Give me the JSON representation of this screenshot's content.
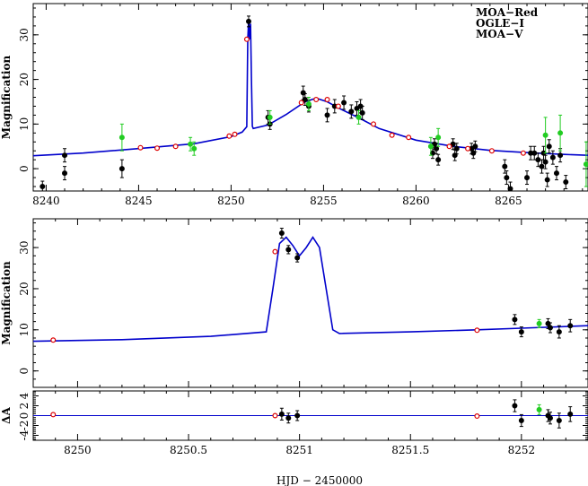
{
  "chart_data": [
    {
      "type": "scatter",
      "ylabel": "Magnification",
      "xlim": [
        8239.3,
        8269.3
      ],
      "ylim": [
        -5,
        37
      ],
      "xticks": [
        8240,
        8245,
        8250,
        8255,
        8260,
        8265
      ],
      "yticks": [
        0,
        10,
        20,
        30
      ],
      "legend": {
        "placement": "top-right",
        "entries": [
          {
            "name": "MOA−Red",
            "color": "#000000"
          },
          {
            "name": "OGLE−I",
            "color": "#dd0000"
          },
          {
            "name": "MOA−V",
            "color": "#22cc22"
          }
        ]
      },
      "model": {
        "name": "",
        "color": "#0000cc",
        "x": [
          8239.3,
          8242,
          8245,
          8248,
          8250,
          8250.6,
          8250.85,
          8250.9,
          8250.95,
          8251.0,
          8251.05,
          8251.1,
          8251.15,
          8251.2,
          8252,
          8253,
          8254,
          8254.6,
          8255.2,
          8256,
          8257,
          8258,
          8260,
          8262,
          8264,
          8266,
          8268,
          8269.3
        ],
        "y": [
          2.9,
          3.5,
          4.5,
          5.6,
          7.2,
          8.2,
          9.4,
          29,
          33.5,
          29,
          32.5,
          20,
          9.5,
          9.0,
          9.8,
          12.2,
          15.0,
          15.8,
          15.0,
          13.2,
          11.2,
          9.0,
          6.4,
          5.0,
          4.1,
          3.6,
          3.2,
          3.0
        ]
      },
      "series": [
        {
          "name": "MOA−Red",
          "color": "#000000",
          "points": [
            [
              8239.8,
              -4,
              1.2
            ],
            [
              8241.0,
              3,
              1.5
            ],
            [
              8241.0,
              -1,
              1.5
            ],
            [
              8244.1,
              0,
              2.0
            ],
            [
              8250.95,
              33,
              1.2
            ],
            [
              8252.0,
              11.5,
              1.5
            ],
            [
              8252.1,
              10,
              1.2
            ],
            [
              8253.9,
              17,
              1.5
            ],
            [
              8254.0,
              15.5,
              1.3
            ],
            [
              8254.2,
              14,
              1.3
            ],
            [
              8255.2,
              12,
              1.5
            ],
            [
              8255.6,
              14,
              1.5
            ],
            [
              8256.1,
              14.8,
              1.5
            ],
            [
              8256.5,
              12.8,
              1.5
            ],
            [
              8256.8,
              13.5,
              1.5
            ],
            [
              8257.0,
              14,
              1.5
            ],
            [
              8257.1,
              12.5,
              1.5
            ],
            [
              8260.9,
              3.5,
              1.2
            ],
            [
              8261.0,
              5.5,
              1.2
            ],
            [
              8261.1,
              4.5,
              1.2
            ],
            [
              8261.2,
              2,
              1.2
            ],
            [
              8262.0,
              5.5,
              1.2
            ],
            [
              8262.1,
              3,
              1.2
            ],
            [
              8262.2,
              4.5,
              1.2
            ],
            [
              8263.0,
              4.5,
              1.2
            ],
            [
              8263.1,
              3.5,
              1.2
            ],
            [
              8263.2,
              5,
              1.2
            ],
            [
              8264.8,
              0.5,
              1.5
            ],
            [
              8264.9,
              -2,
              1.5
            ],
            [
              8265.1,
              -4.5,
              1.5
            ],
            [
              8266.0,
              -2,
              1.5
            ],
            [
              8266.2,
              3.5,
              1.5
            ],
            [
              8266.4,
              3.5,
              1.5
            ],
            [
              8266.6,
              2,
              1.5
            ],
            [
              8266.8,
              0.5,
              1.5
            ],
            [
              8266.9,
              3.5,
              1.5
            ],
            [
              8267.0,
              1.5,
              1.5
            ],
            [
              8267.1,
              -2.5,
              1.5
            ],
            [
              8267.2,
              5,
              1.5
            ],
            [
              8267.4,
              2.5,
              1.5
            ],
            [
              8267.6,
              -1,
              1.5
            ],
            [
              8267.8,
              3,
              1.5
            ],
            [
              8268.1,
              -3,
              1.5
            ]
          ]
        },
        {
          "name": "OGLE−I",
          "color": "#dd0000",
          "points": [
            [
              8245.1,
              4.7,
              0
            ],
            [
              8246.0,
              4.6,
              0
            ],
            [
              8247.0,
              5.0,
              0
            ],
            [
              8249.9,
              7.3,
              0
            ],
            [
              8250.2,
              7.7,
              0
            ],
            [
              8250.85,
              29,
              0
            ],
            [
              8253.8,
              14.8,
              0
            ],
            [
              8254.6,
              15.5,
              0
            ],
            [
              8255.2,
              15.5,
              0
            ],
            [
              8255.8,
              14,
              0
            ],
            [
              8257.7,
              10,
              0
            ],
            [
              8258.7,
              7.5,
              0
            ],
            [
              8259.6,
              7.0,
              0
            ],
            [
              8261.8,
              5.0,
              0
            ],
            [
              8262.8,
              4.5,
              0
            ],
            [
              8264.1,
              4.0,
              0
            ],
            [
              8265.8,
              3.5,
              0
            ]
          ]
        },
        {
          "name": "MOA−V",
          "color": "#22cc22",
          "points": [
            [
              8244.1,
              7,
              3
            ],
            [
              8247.8,
              5.5,
              1.5
            ],
            [
              8248.0,
              4.5,
              1.5
            ],
            [
              8252.1,
              11.5,
              1.5
            ],
            [
              8254.2,
              14.5,
              1.5
            ],
            [
              8256.9,
              11.5,
              1.5
            ],
            [
              8260.8,
              5,
              2
            ],
            [
              8261.2,
              7,
              2
            ],
            [
              8267.0,
              7.5,
              4
            ],
            [
              8267.8,
              8,
              4
            ],
            [
              8269.2,
              1,
              5
            ]
          ]
        }
      ]
    },
    {
      "type": "scatter",
      "ylabel": "Magnification",
      "xlim": [
        8249.8,
        8252.3
      ],
      "ylim": [
        -4,
        37
      ],
      "yticks": [
        0,
        10,
        20,
        30
      ],
      "model": {
        "name": "",
        "color": "#0000cc",
        "x": [
          8249.8,
          8250.2,
          8250.6,
          8250.85,
          8250.88,
          8250.91,
          8250.94,
          8250.97,
          8251.0,
          8251.03,
          8251.06,
          8251.09,
          8251.12,
          8251.15,
          8251.18,
          8251.5,
          8251.8,
          8252.0,
          8252.3
        ],
        "y": [
          7.2,
          7.6,
          8.4,
          9.5,
          20,
          31,
          32.5,
          30.5,
          28,
          30,
          32.5,
          30,
          20,
          10,
          9.1,
          9.5,
          10.0,
          10.4,
          11.0
        ]
      },
      "series": [
        {
          "name": "MOA−Red",
          "color": "#000000",
          "points": [
            [
              8250.92,
              33.5,
              1.2
            ],
            [
              8250.95,
              29.5,
              1.0
            ],
            [
              8250.99,
              27.5,
              1.0
            ],
            [
              8251.97,
              12.5,
              1.2
            ],
            [
              8252.0,
              9.5,
              1.2
            ],
            [
              8252.12,
              11.5,
              1.2
            ],
            [
              8252.13,
              10.5,
              1.2
            ],
            [
              8252.17,
              9.5,
              1.5
            ],
            [
              8252.22,
              11,
              1.5
            ]
          ]
        },
        {
          "name": "OGLE−I",
          "color": "#dd0000",
          "points": [
            [
              8249.89,
              7.5,
              0
            ],
            [
              8250.89,
              29,
              0
            ],
            [
              8251.8,
              9.9,
              0
            ]
          ]
        },
        {
          "name": "MOA−V",
          "color": "#22cc22",
          "points": [
            [
              8252.08,
              11.5,
              1.0
            ]
          ]
        }
      ]
    },
    {
      "type": "scatter",
      "ylabel": "ΔA",
      "xlabel": "HJD − 2450000",
      "xlim": [
        8249.8,
        8252.3
      ],
      "ylim": [
        -5,
        5
      ],
      "xticks": [
        8250,
        8250.5,
        8251,
        8251.5,
        8252
      ],
      "yticks": [
        -4,
        -2,
        0,
        2,
        4
      ],
      "zero_line_color": "#0000cc",
      "series": [
        {
          "name": "MOA−Red",
          "color": "#000000",
          "points": [
            [
              8250.92,
              0.3,
              1.2
            ],
            [
              8250.95,
              -0.5,
              1.0
            ],
            [
              8250.99,
              0,
              1.0
            ],
            [
              8251.97,
              2.0,
              1.2
            ],
            [
              8252.0,
              -1.0,
              1.2
            ],
            [
              8252.12,
              0,
              1.2
            ],
            [
              8252.13,
              -0.5,
              1.2
            ],
            [
              8252.17,
              -1.0,
              1.5
            ],
            [
              8252.22,
              0.3,
              1.5
            ]
          ]
        },
        {
          "name": "OGLE−I",
          "color": "#dd0000",
          "points": [
            [
              8249.89,
              0.2,
              0
            ],
            [
              8250.89,
              0,
              0
            ],
            [
              8251.8,
              -0.1,
              0
            ]
          ]
        },
        {
          "name": "MOA−V",
          "color": "#22cc22",
          "points": [
            [
              8252.08,
              1.2,
              1.0
            ]
          ]
        }
      ]
    }
  ]
}
